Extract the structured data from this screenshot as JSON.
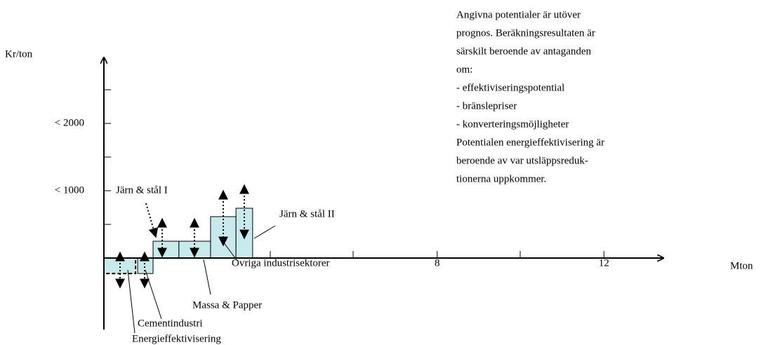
{
  "chart_data": {
    "type": "step-bar",
    "x_label": "Mton",
    "y_label": "Kr/ton",
    "x_left": [
      0,
      0.81,
      1.18,
      1.8,
      2.56,
      3.17
    ],
    "x_right": [
      0.76,
      1.18,
      1.8,
      2.56,
      3.17,
      3.57
    ],
    "values": [
      -230,
      -230,
      250,
      250,
      615,
      740
    ],
    "color": "#c8eaec",
    "xlim": [
      0,
      13.2
    ],
    "ylim": [
      -1060,
      3000
    ],
    "xticks": [
      8,
      12
    ],
    "yticks": [
      {
        "value": 1000,
        "label": "< 1000"
      },
      {
        "value": 2000,
        "label": "< 2000"
      }
    ],
    "annotations": [
      "Järn & stål I",
      "Järn & stål II",
      "Övriga industrisektorer",
      "Massa & Papper",
      "Cementindustri",
      "Energieffektivisering"
    ],
    "note": [
      "Angivna potentialer är utöver",
      "prognos. Beräkningsresultaten är",
      "särskilt beroende av antaganden",
      "om:",
      "- effektiviseringspotential",
      "- bränslepriser",
      "- konverteringsmöjligheter",
      "Potentialen energieffektivisering är",
      "beroende av var utsläppsreduk-",
      "tionerna uppkommer."
    ]
  }
}
